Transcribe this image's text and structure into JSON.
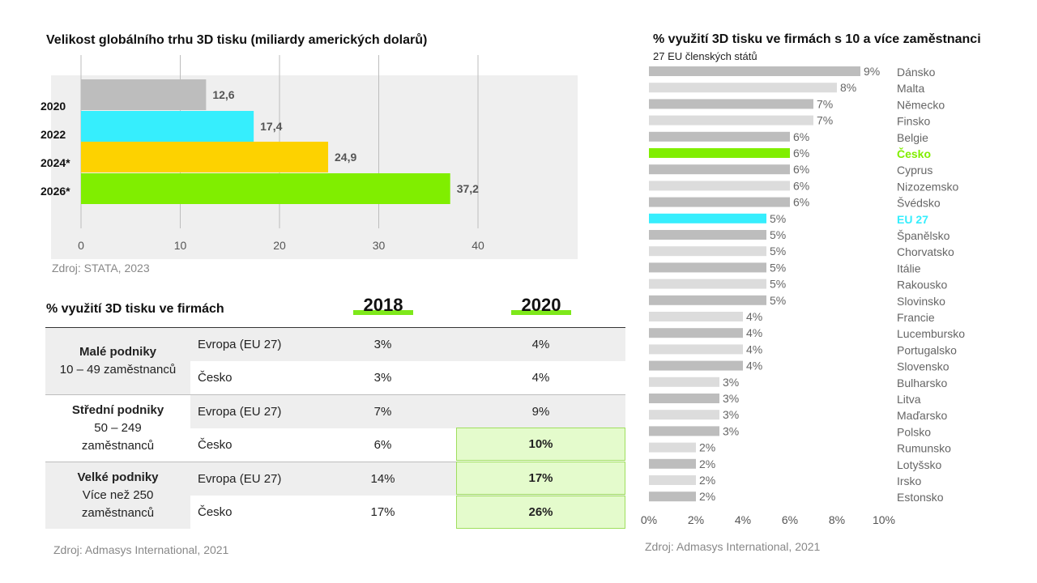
{
  "colors": {
    "grey_dark": "#bdbdbd",
    "grey_light": "#dcdcdc",
    "cyan": "#36eefd",
    "yellow": "#fdd200",
    "green": "#80ee00",
    "panel_bg": "#efefef",
    "highlight_bg": "#e4fbcc"
  },
  "market": {
    "title": "Velikost globálního trhu 3D tisku (miliardy amerických dolarů)",
    "source": "Zdroj: STATA, 2023"
  },
  "usage_table": {
    "title": "% využití 3D tisku ve firmách",
    "years": [
      "2018",
      "2020"
    ],
    "groups": [
      {
        "name": "Malé podniky",
        "desc": "10 – 49 zaměstnanců",
        "rows": [
          {
            "label": "Evropa (EU 27)",
            "v2018": "3%",
            "v2020": "4%"
          },
          {
            "label": "Česko",
            "v2018": "3%",
            "v2020": "4%"
          }
        ]
      },
      {
        "name": "Střední podniky",
        "desc1": "50 – 249",
        "desc2": "zaměstnanců",
        "rows": [
          {
            "label": "Evropa (EU 27)",
            "v2018": "7%",
            "v2020": "9%"
          },
          {
            "label": "Česko",
            "v2018": "6%",
            "v2020": "10%"
          }
        ]
      },
      {
        "name": "Velké podniky",
        "desc1": "Více než 250",
        "desc2": "zaměstnanců",
        "rows": [
          {
            "label": "Evropa (EU 27)",
            "v2018": "14%",
            "v2020": "17%"
          },
          {
            "label": "Česko",
            "v2018": "17%",
            "v2020": "26%"
          }
        ]
      }
    ],
    "source": "Zdroj: Admasys International, 2021"
  },
  "eu": {
    "title": "% využití 3D tisku ve firmách s 10 a více zaměstnanci",
    "subtitle": "27 EU členských států",
    "source": "Zdroj: Admasys International, 2021"
  },
  "chart_data": [
    {
      "type": "bar",
      "orientation": "horizontal",
      "title": "Velikost globálního trhu 3D tisku (miliardy amerických dolarů)",
      "categories": [
        "2020",
        "2022",
        "2024*",
        "2026*"
      ],
      "values": [
        12.6,
        17.4,
        24.9,
        37.2
      ],
      "value_labels": [
        "12,6",
        "17,4",
        "24,9",
        "37,2"
      ],
      "colors": [
        "#bdbdbd",
        "#36eefd",
        "#fdd200",
        "#80ee00"
      ],
      "xlim": [
        0,
        40
      ],
      "xticks": [
        0,
        10,
        20,
        30,
        40
      ],
      "xtick_labels": [
        "0",
        "10",
        "20",
        "30",
        "40"
      ],
      "grid": true,
      "legend": "none"
    },
    {
      "type": "bar",
      "orientation": "horizontal",
      "title": "% využití 3D tisku ve firmách s 10 a více zaměstnanci",
      "subtitle": "27 EU členských států",
      "categories": [
        "Dánsko",
        "Malta",
        "Německo",
        "Finsko",
        "Belgie",
        "Česko",
        "Cyprus",
        "Nizozemsko",
        "Švédsko",
        "EU 27",
        "Španělsko",
        "Chorvatsko",
        "Itálie",
        "Rakousko",
        "Slovinsko",
        "Francie",
        "Lucembursko",
        "Portugalsko",
        "Slovensko",
        "Bulharsko",
        "Litva",
        "Maďarsko",
        "Polsko",
        "Rumunsko",
        "Lotyšsko",
        "Irsko",
        "Estonsko"
      ],
      "values": [
        9,
        8,
        7,
        7,
        6,
        6,
        6,
        6,
        6,
        5,
        5,
        5,
        5,
        5,
        5,
        4,
        4,
        4,
        4,
        3,
        3,
        3,
        3,
        2,
        2,
        2,
        2
      ],
      "value_labels": [
        "9%",
        "8%",
        "7%",
        "7%",
        "6%",
        "6%",
        "6%",
        "6%",
        "6%",
        "5%",
        "5%",
        "5%",
        "5%",
        "5%",
        "5%",
        "4%",
        "4%",
        "4%",
        "4%",
        "3%",
        "3%",
        "3%",
        "3%",
        "2%",
        "2%",
        "2%",
        "2%"
      ],
      "highlight": {
        "Česko": "#80ee00",
        "EU 27": "#36eefd"
      },
      "xlim": [
        0,
        10
      ],
      "xticks": [
        0,
        2,
        4,
        6,
        8,
        10
      ],
      "xtick_labels": [
        "0%",
        "2%",
        "4%",
        "6%",
        "8%",
        "10%"
      ],
      "grid": false,
      "legend": "none"
    }
  ]
}
